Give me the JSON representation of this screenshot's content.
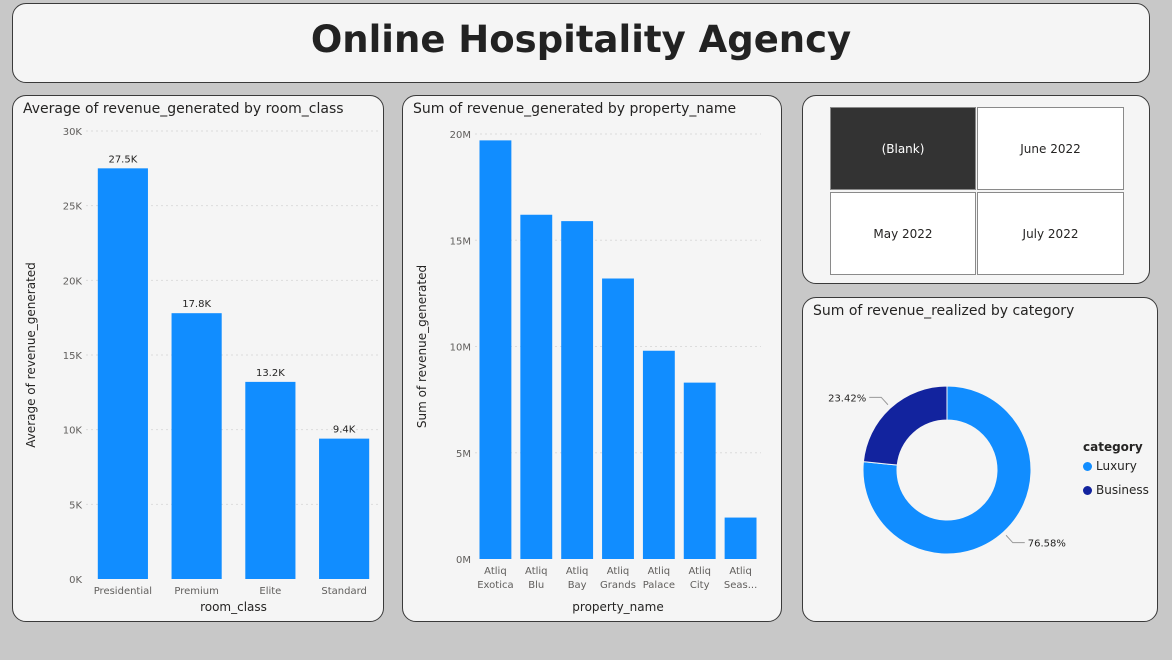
{
  "header": {
    "title": "Online Hospitality Agency"
  },
  "colors": {
    "bar": "#118DFF",
    "luxury": "#118DFF",
    "business": "#12239E"
  },
  "slicer": {
    "items": [
      {
        "label": "(Blank)",
        "selected": true
      },
      {
        "label": "June 2022",
        "selected": false
      },
      {
        "label": "May 2022",
        "selected": false
      },
      {
        "label": "July 2022",
        "selected": false
      }
    ]
  },
  "chart_data": [
    {
      "type": "bar",
      "title": "Average of revenue_generated by room_class",
      "xlabel": "room_class",
      "ylabel": "Average of revenue_generated",
      "categories": [
        "Presidential",
        "Premium",
        "Elite",
        "Standard"
      ],
      "values": [
        27500,
        17800,
        13200,
        9400
      ],
      "data_labels": [
        "27.5K",
        "17.8K",
        "13.2K",
        "9.4K"
      ],
      "ylim": [
        0,
        30000
      ],
      "yticks": [
        0,
        5000,
        10000,
        15000,
        20000,
        25000,
        30000
      ],
      "ytick_labels": [
        "0K",
        "5K",
        "10K",
        "15K",
        "20K",
        "25K",
        "30K"
      ],
      "grid": true
    },
    {
      "type": "bar",
      "title": "Sum of revenue_generated by property_name",
      "xlabel": "property_name",
      "ylabel": "Sum of revenue_generated",
      "categories": [
        [
          "Atliq",
          "Exotica"
        ],
        [
          "Atliq",
          "Blu"
        ],
        [
          "Atliq",
          "Bay"
        ],
        [
          "Atliq",
          "Grands"
        ],
        [
          "Atliq",
          "Palace"
        ],
        [
          "Atliq",
          "City"
        ],
        [
          "Atliq",
          "Seas..."
        ]
      ],
      "values": [
        19700000,
        16200000,
        15900000,
        13200000,
        9800000,
        8300000,
        1950000
      ],
      "ylim": [
        0,
        20000000
      ],
      "yticks": [
        0,
        5000000,
        10000000,
        15000000,
        20000000
      ],
      "ytick_labels": [
        "0M",
        "5M",
        "10M",
        "15M",
        "20M"
      ],
      "grid": true
    },
    {
      "type": "pie",
      "title": "Sum of revenue_realized by category",
      "legend_title": "category",
      "legend_position": "right",
      "slices": [
        {
          "name": "Luxury",
          "value": 76.58,
          "label": "76.58%"
        },
        {
          "name": "Business",
          "value": 23.42,
          "label": "23.42%"
        }
      ]
    }
  ]
}
